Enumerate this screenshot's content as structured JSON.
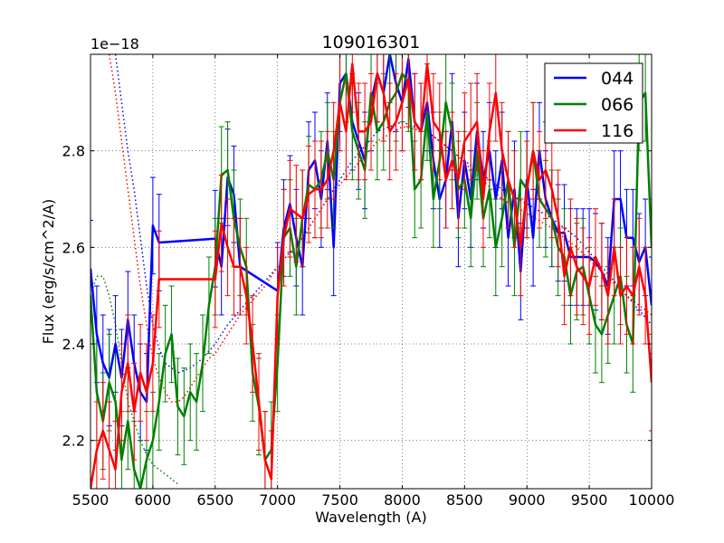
{
  "chart_data": {
    "type": "line",
    "title": "109016301",
    "xlabel": "Wavelength (A)",
    "ylabel": "Flux (erg/s/cm^2/A)",
    "y_offset_label": "1e−18",
    "xlim": [
      5500,
      10000
    ],
    "ylim": [
      2.1,
      3.0
    ],
    "x_ticks": [
      "5500",
      "6000",
      "6500",
      "7000",
      "7500",
      "8000",
      "8500",
      "9000",
      "9500",
      "10000"
    ],
    "y_ticks": [
      "2.2",
      "2.4",
      "2.6",
      "2.8"
    ],
    "grid": true,
    "legend_position": "top-right",
    "series": [
      {
        "name": "044",
        "color": "#0000ff",
        "x": [
          5500,
          5550,
          5600,
          5650,
          5700,
          5750,
          5800,
          5850,
          5900,
          5950,
          6000,
          6050,
          6500,
          6550,
          6600,
          6650,
          6700,
          7000,
          7050,
          7100,
          7150,
          7200,
          7250,
          7300,
          7350,
          7400,
          7450,
          7500,
          7550,
          7600,
          7650,
          7700,
          7750,
          7800,
          7850,
          7900,
          7950,
          8000,
          8050,
          8100,
          8150,
          8200,
          8250,
          8300,
          8350,
          8400,
          8450,
          8500,
          8550,
          8600,
          8650,
          8700,
          8750,
          8800,
          8850,
          8900,
          8950,
          9000,
          9050,
          9100,
          9150,
          9200,
          9250,
          9300,
          9350,
          9400,
          9450,
          9500,
          9550,
          9600,
          9650,
          9700,
          9750,
          9800,
          9850,
          9900,
          9950,
          10000
        ],
        "y": [
          2.556,
          2.42,
          2.36,
          2.33,
          2.4,
          2.33,
          2.45,
          2.36,
          2.3,
          2.28,
          2.645,
          2.61,
          2.618,
          2.56,
          2.745,
          2.71,
          2.56,
          2.51,
          2.64,
          2.69,
          2.62,
          2.56,
          2.76,
          2.78,
          2.7,
          2.82,
          2.6,
          2.94,
          2.96,
          2.86,
          2.82,
          2.78,
          2.9,
          2.96,
          2.92,
          3.0,
          2.94,
          2.9,
          2.99,
          2.86,
          2.84,
          2.9,
          2.78,
          2.7,
          2.74,
          2.86,
          2.66,
          2.78,
          2.7,
          2.84,
          2.74,
          2.8,
          2.7,
          2.78,
          2.62,
          2.72,
          2.55,
          2.74,
          2.62,
          2.8,
          2.7,
          2.66,
          2.63,
          2.63,
          2.58,
          2.58,
          2.58,
          2.58,
          2.57,
          2.55,
          2.52,
          2.7,
          2.7,
          2.62,
          2.62,
          2.57,
          2.6,
          2.48
        ]
      },
      {
        "name": "066",
        "color": "#008000",
        "x": [
          5500,
          5550,
          5600,
          5650,
          5700,
          5750,
          5800,
          5850,
          5900,
          5950,
          6000,
          6050,
          6100,
          6150,
          6200,
          6250,
          6300,
          6350,
          6400,
          6450,
          6500,
          6550,
          6600,
          6650,
          6700,
          6750,
          6800,
          6850,
          6900,
          6950,
          7000,
          7050,
          7100,
          7150,
          7200,
          7250,
          7300,
          7350,
          7400,
          7450,
          7500,
          7550,
          7600,
          7650,
          7700,
          7750,
          7800,
          7850,
          7900,
          7950,
          8000,
          8050,
          8100,
          8150,
          8200,
          8250,
          8300,
          8350,
          8400,
          8450,
          8500,
          8550,
          8600,
          8650,
          8700,
          8750,
          8800,
          8850,
          8900,
          8950,
          9000,
          9050,
          9100,
          9150,
          9200,
          9250,
          9300,
          9350,
          9400,
          9450,
          9500,
          9550,
          9600,
          9650,
          9700,
          9750,
          9800,
          9850,
          9900,
          9950,
          10000
        ],
        "y": [
          2.5,
          2.3,
          2.24,
          2.32,
          2.28,
          2.16,
          2.24,
          2.14,
          2.1,
          2.16,
          2.2,
          2.28,
          2.38,
          2.42,
          2.27,
          2.25,
          2.3,
          2.28,
          2.36,
          2.48,
          2.56,
          2.75,
          2.76,
          2.66,
          2.6,
          2.56,
          2.34,
          2.27,
          2.16,
          2.18,
          2.36,
          2.62,
          2.64,
          2.56,
          2.66,
          2.73,
          2.72,
          2.74,
          2.8,
          2.74,
          2.9,
          2.96,
          2.84,
          2.8,
          2.76,
          2.92,
          2.84,
          2.86,
          2.9,
          2.92,
          2.96,
          2.94,
          2.72,
          2.74,
          2.88,
          2.7,
          2.78,
          2.9,
          2.84,
          2.72,
          2.74,
          2.66,
          2.8,
          2.66,
          2.72,
          2.6,
          2.66,
          2.74,
          2.6,
          2.74,
          2.72,
          2.8,
          2.7,
          2.68,
          2.66,
          2.6,
          2.58,
          2.5,
          2.55,
          2.56,
          2.5,
          2.44,
          2.42,
          2.46,
          2.5,
          2.54,
          2.44,
          2.4,
          2.9,
          2.92,
          2.6
        ]
      },
      {
        "name": "116",
        "color": "#ff0000",
        "x": [
          5500,
          5550,
          5600,
          5650,
          5700,
          5750,
          5800,
          5850,
          5900,
          5950,
          6000,
          6050,
          6500,
          6550,
          6600,
          6650,
          6700,
          6750,
          6800,
          6850,
          6900,
          6950,
          7000,
          7050,
          7100,
          7150,
          7200,
          7250,
          7300,
          7350,
          7400,
          7450,
          7500,
          7550,
          7600,
          7650,
          7700,
          7750,
          7800,
          7850,
          7900,
          7950,
          8000,
          8050,
          8100,
          8150,
          8200,
          8250,
          8300,
          8350,
          8400,
          8450,
          8500,
          8550,
          8600,
          8650,
          8700,
          8750,
          8800,
          8850,
          8900,
          8950,
          9000,
          9050,
          9100,
          9150,
          9200,
          9250,
          9300,
          9350,
          9400,
          9450,
          9500,
          9550,
          9600,
          9650,
          9700,
          9750,
          9800,
          9850,
          9900,
          9950,
          10000
        ],
        "y": [
          2.1,
          2.18,
          2.22,
          2.18,
          2.14,
          2.3,
          2.36,
          2.26,
          2.34,
          2.3,
          2.36,
          2.534,
          2.534,
          2.65,
          2.6,
          2.56,
          2.56,
          2.5,
          2.4,
          2.28,
          2.16,
          2.12,
          2.5,
          2.62,
          2.68,
          2.67,
          2.66,
          2.71,
          2.72,
          2.72,
          2.74,
          2.8,
          2.9,
          2.84,
          2.98,
          2.84,
          2.84,
          2.86,
          2.96,
          2.92,
          2.84,
          2.86,
          2.9,
          2.95,
          2.86,
          2.84,
          2.98,
          2.86,
          2.84,
          2.74,
          2.78,
          2.74,
          2.82,
          2.84,
          2.86,
          2.7,
          2.84,
          2.92,
          2.8,
          2.74,
          2.7,
          2.6,
          2.72,
          2.8,
          2.74,
          2.76,
          2.72,
          2.66,
          2.54,
          2.6,
          2.56,
          2.54,
          2.52,
          2.58,
          2.55,
          2.5,
          2.6,
          2.5,
          2.52,
          2.5,
          2.56,
          2.5,
          2.32
        ]
      }
    ],
    "model_curves": [
      {
        "name": "044 model",
        "color": "#0000ff",
        "x": [
          5700,
          5750,
          5800,
          5850,
          5900,
          5950,
          6000,
          6050,
          6100,
          6200,
          6300,
          6400,
          6500,
          6600,
          6700,
          6800,
          6900,
          7000,
          7200,
          7400,
          7600,
          7800,
          8000,
          8200,
          8400,
          8600,
          8800,
          9000,
          9200,
          9400,
          9600,
          9800,
          10000
        ],
        "y": [
          3.0,
          2.9,
          2.8,
          2.72,
          2.62,
          2.52,
          2.44,
          2.39,
          2.36,
          2.34,
          2.35,
          2.37,
          2.4,
          2.44,
          2.47,
          2.5,
          2.53,
          2.56,
          2.62,
          2.7,
          2.78,
          2.84,
          2.86,
          2.84,
          2.8,
          2.76,
          2.72,
          2.69,
          2.66,
          2.62,
          2.56,
          2.5,
          2.44
        ]
      },
      {
        "name": "066 model",
        "color": "#008000",
        "x": [
          5500,
          5550,
          5600,
          5650,
          5700,
          5750,
          5800,
          5850,
          5900,
          5950,
          6000,
          6050,
          6100,
          6150,
          6200
        ],
        "y": [
          2.5,
          2.54,
          2.54,
          2.5,
          2.44,
          2.36,
          2.28,
          2.24,
          2.2,
          2.17,
          2.15,
          2.14,
          2.13,
          2.12,
          2.11
        ]
      },
      {
        "name": "116 model",
        "color": "#ff0000",
        "x": [
          5650,
          5700,
          5750,
          5800,
          5850,
          5900,
          5950,
          6000,
          6050,
          6100,
          6150,
          6200,
          6250,
          6300,
          6350,
          6400,
          6450,
          6500,
          6600,
          6700,
          6800,
          6900,
          7000,
          7200,
          7400,
          7600,
          7800,
          8000,
          8200,
          8400,
          8600,
          8800,
          9000,
          9200,
          9400,
          9600,
          9800,
          10000
        ],
        "y": [
          3.0,
          2.92,
          2.82,
          2.72,
          2.62,
          2.52,
          2.44,
          2.37,
          2.33,
          2.3,
          2.28,
          2.28,
          2.29,
          2.31,
          2.33,
          2.35,
          2.37,
          2.38,
          2.42,
          2.46,
          2.49,
          2.52,
          2.56,
          2.62,
          2.7,
          2.76,
          2.82,
          2.85,
          2.84,
          2.8,
          2.75,
          2.7,
          2.67,
          2.64,
          2.6,
          2.55,
          2.5,
          2.46
        ]
      }
    ],
    "error_bar": 0.1
  }
}
